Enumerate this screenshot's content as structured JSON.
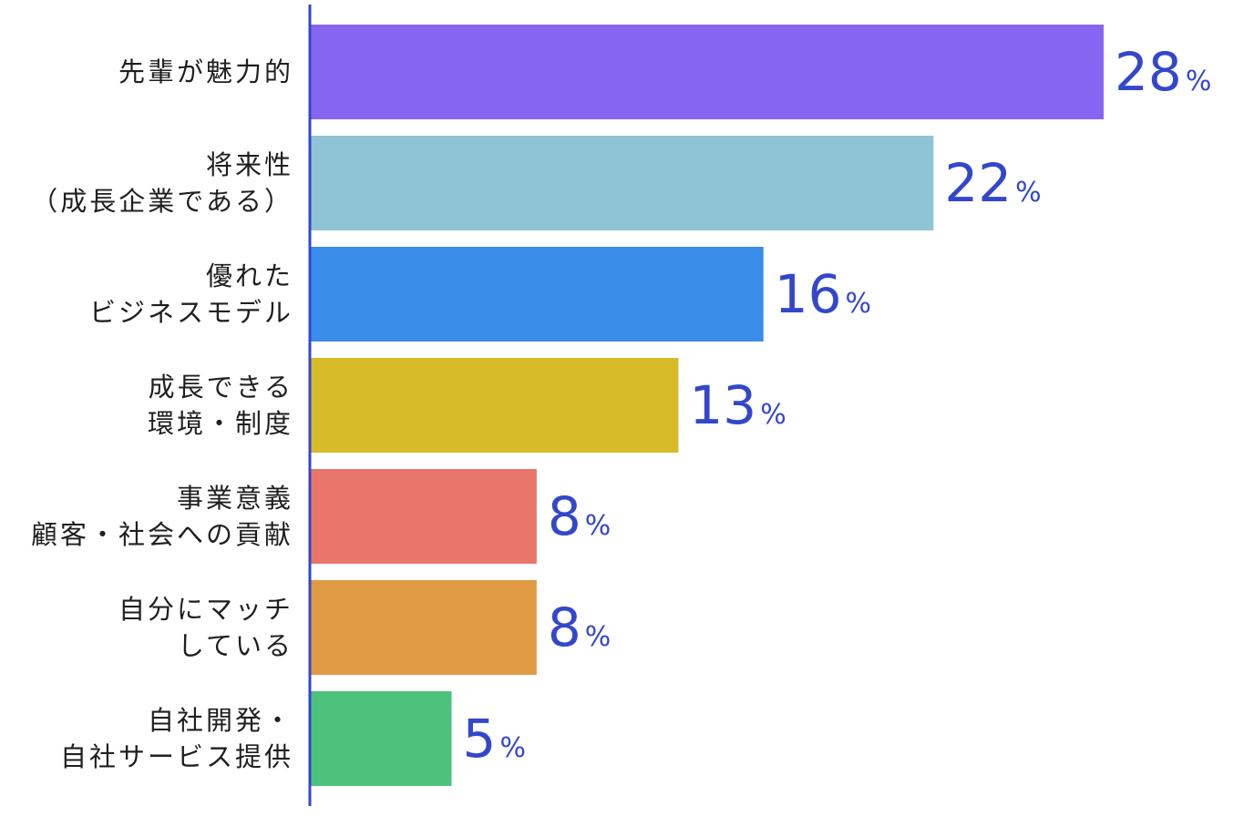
{
  "chart_data": {
    "type": "bar",
    "orientation": "horizontal",
    "unit": "%",
    "categories": [
      [
        "先輩が魅力的"
      ],
      [
        "将来性",
        "（成長企業である）"
      ],
      [
        "優れた",
        "ビジネスモデル"
      ],
      [
        "成長できる",
        "環境・制度"
      ],
      [
        "事業意義",
        "顧客・社会への貢献"
      ],
      [
        "自分にマッチ",
        "している"
      ],
      [
        "自社開発・",
        "自社サービス提供"
      ]
    ],
    "values": [
      28,
      22,
      16,
      13,
      8,
      8,
      5
    ],
    "colors": [
      "#8466f1",
      "#8fc3d6",
      "#3a8ce9",
      "#d8bb29",
      "#e8766b",
      "#e09a44",
      "#4cc27c"
    ],
    "axis_color": "#3347cc",
    "value_color": "#3347cc",
    "xlim": [
      0,
      28
    ]
  }
}
